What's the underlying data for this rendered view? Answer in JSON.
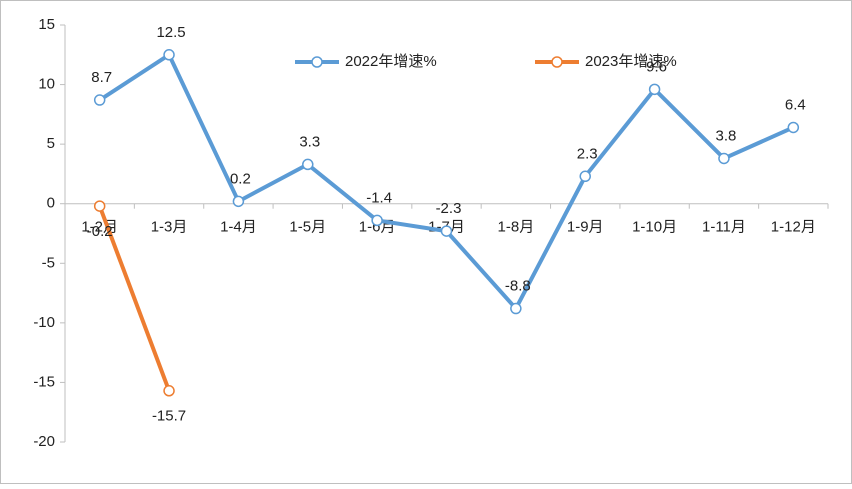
{
  "chart_data": {
    "type": "line",
    "categories": [
      "1-2月",
      "1-3月",
      "1-4月",
      "1-5月",
      "1-6月",
      "1-7月",
      "1-8月",
      "1-9月",
      "1-10月",
      "1-11月",
      "1-12月"
    ],
    "series": [
      {
        "name": "2022年增速%",
        "color": "#5b9bd5",
        "values": [
          8.7,
          12.5,
          0.2,
          3.3,
          -1.4,
          -2.3,
          -8.8,
          2.3,
          9.6,
          3.8,
          6.4
        ]
      },
      {
        "name": "2023年增速%",
        "color": "#ed7d31",
        "values": [
          -0.2,
          -15.7,
          null,
          null,
          null,
          null,
          null,
          null,
          null,
          null,
          null
        ]
      }
    ],
    "ylim": [
      -20,
      15
    ],
    "yticks": [
      -20,
      -15,
      -10,
      -5,
      0,
      5,
      10,
      15
    ],
    "grid": false,
    "legend": "top"
  }
}
